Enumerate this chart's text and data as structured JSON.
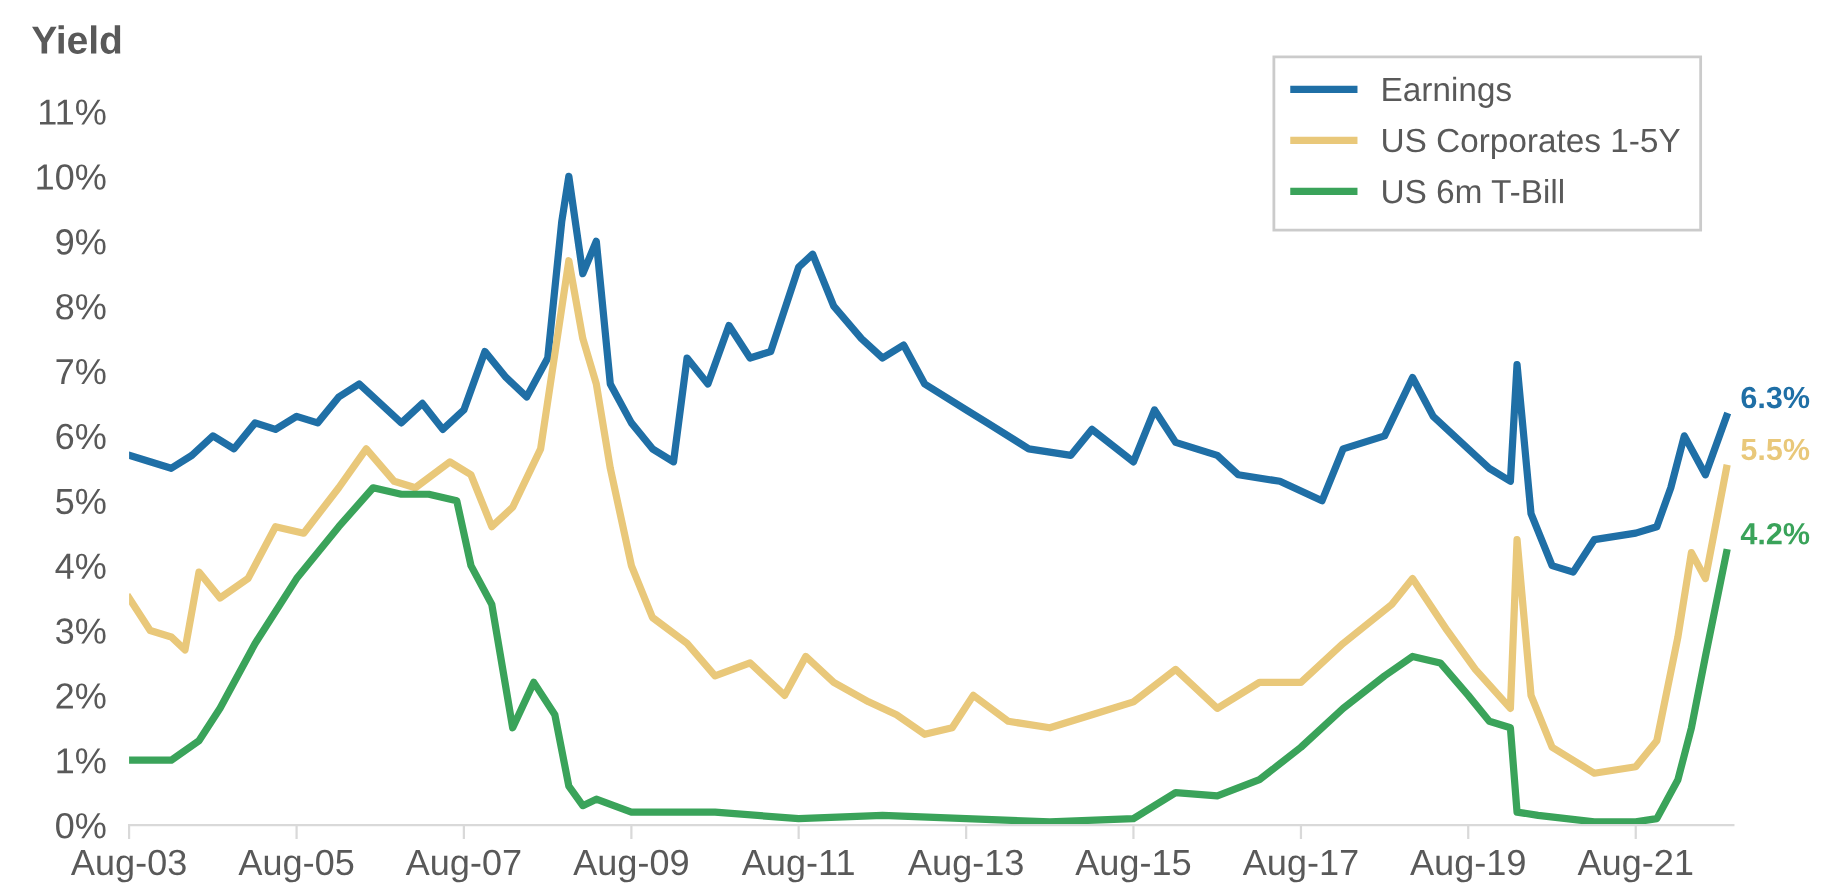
{
  "chart_data": {
    "type": "line",
    "ylabel": "Yield",
    "xlim": [
      "2003-08",
      "2022-10"
    ],
    "xticks": [
      {
        "value": "2003-08",
        "label": "Aug-03"
      },
      {
        "value": "2005-08",
        "label": "Aug-05"
      },
      {
        "value": "2007-08",
        "label": "Aug-07"
      },
      {
        "value": "2009-08",
        "label": "Aug-09"
      },
      {
        "value": "2011-08",
        "label": "Aug-11"
      },
      {
        "value": "2013-08",
        "label": "Aug-13"
      },
      {
        "value": "2015-08",
        "label": "Aug-15"
      },
      {
        "value": "2017-08",
        "label": "Aug-17"
      },
      {
        "value": "2019-08",
        "label": "Aug-19"
      },
      {
        "value": "2021-08",
        "label": "Aug-21"
      }
    ],
    "ylim": [
      0,
      11
    ],
    "yticks": [
      {
        "value": 0,
        "label": "0%"
      },
      {
        "value": 1,
        "label": "1%"
      },
      {
        "value": 2,
        "label": "2%"
      },
      {
        "value": 3,
        "label": "3%"
      },
      {
        "value": 4,
        "label": "4%"
      },
      {
        "value": 5,
        "label": "5%"
      },
      {
        "value": 6,
        "label": "6%"
      },
      {
        "value": 7,
        "label": "7%"
      },
      {
        "value": 8,
        "label": "8%"
      },
      {
        "value": 9,
        "label": "9%"
      },
      {
        "value": 10,
        "label": "10%"
      },
      {
        "value": 11,
        "label": "11%"
      }
    ],
    "grid": false,
    "legend": "top right",
    "marker": "none",
    "line_style": "solid",
    "series": [
      {
        "name": "Earnings",
        "color": "#1f6fa6",
        "x": [
          "2003-08",
          "2003-11",
          "2004-02",
          "2004-05",
          "2004-08",
          "2004-11",
          "2005-02",
          "2005-05",
          "2005-08",
          "2005-11",
          "2006-02",
          "2006-05",
          "2006-08",
          "2006-11",
          "2007-02",
          "2007-05",
          "2007-08",
          "2007-11",
          "2008-02",
          "2008-05",
          "2008-08",
          "2008-10",
          "2008-11",
          "2009-01",
          "2009-03",
          "2009-05",
          "2009-08",
          "2009-11",
          "2010-02",
          "2010-04",
          "2010-07",
          "2010-10",
          "2011-01",
          "2011-04",
          "2011-08",
          "2011-10",
          "2012-01",
          "2012-05",
          "2012-08",
          "2012-11",
          "2013-02",
          "2013-08",
          "2013-11",
          "2014-05",
          "2014-11",
          "2015-02",
          "2015-08",
          "2015-11",
          "2016-02",
          "2016-08",
          "2016-11",
          "2017-05",
          "2017-11",
          "2018-02",
          "2018-08",
          "2018-12",
          "2019-03",
          "2019-08",
          "2019-11",
          "2020-02",
          "2020-03",
          "2020-05",
          "2020-08",
          "2020-11",
          "2021-02",
          "2021-08",
          "2021-11",
          "2022-01",
          "2022-03",
          "2022-06",
          "2022-09"
        ],
        "values": [
          5.7,
          5.6,
          5.5,
          5.7,
          6.0,
          5.8,
          6.2,
          6.1,
          6.3,
          6.2,
          6.6,
          6.8,
          6.5,
          6.2,
          6.5,
          6.1,
          6.4,
          7.3,
          6.9,
          6.6,
          7.2,
          9.3,
          10.0,
          8.5,
          9.0,
          6.8,
          6.2,
          5.8,
          5.6,
          7.2,
          6.8,
          7.7,
          7.2,
          7.3,
          8.6,
          8.8,
          8.0,
          7.5,
          7.2,
          7.4,
          6.8,
          6.4,
          6.2,
          5.8,
          5.7,
          6.1,
          5.6,
          6.4,
          5.9,
          5.7,
          5.4,
          5.3,
          5.0,
          5.8,
          6.0,
          6.9,
          6.3,
          5.8,
          5.5,
          5.3,
          7.1,
          4.8,
          4.0,
          3.9,
          4.4,
          4.5,
          4.6,
          5.2,
          6.0,
          5.4,
          6.3
        ]
      },
      {
        "name": "US Corporates 1-5Y",
        "color": "#e9c87a",
        "x": [
          "2003-08",
          "2003-11",
          "2004-02",
          "2004-04",
          "2004-06",
          "2004-09",
          "2005-01",
          "2005-05",
          "2005-09",
          "2006-02",
          "2006-06",
          "2006-10",
          "2007-01",
          "2007-06",
          "2007-09",
          "2007-12",
          "2008-03",
          "2008-07",
          "2008-11",
          "2009-01",
          "2009-03",
          "2009-05",
          "2009-08",
          "2009-11",
          "2010-04",
          "2010-08",
          "2011-01",
          "2011-06",
          "2011-09",
          "2012-01",
          "2012-06",
          "2012-10",
          "2013-02",
          "2013-06",
          "2013-09",
          "2014-02",
          "2014-08",
          "2015-02",
          "2015-08",
          "2016-02",
          "2016-08",
          "2017-02",
          "2017-08",
          "2018-02",
          "2018-09",
          "2018-12",
          "2019-05",
          "2019-09",
          "2020-02",
          "2020-03",
          "2020-05",
          "2020-08",
          "2020-11",
          "2021-02",
          "2021-08",
          "2021-11",
          "2022-02",
          "2022-04",
          "2022-06",
          "2022-09"
        ],
        "values": [
          3.5,
          3.0,
          2.9,
          2.7,
          3.9,
          3.5,
          3.8,
          4.6,
          4.5,
          5.2,
          5.8,
          5.3,
          5.2,
          5.6,
          5.4,
          4.6,
          4.9,
          5.8,
          8.7,
          7.5,
          6.8,
          5.5,
          4.0,
          3.2,
          2.8,
          2.3,
          2.5,
          2.0,
          2.6,
          2.2,
          1.9,
          1.7,
          1.4,
          1.5,
          2.0,
          1.6,
          1.5,
          1.7,
          1.9,
          2.4,
          1.8,
          2.2,
          2.2,
          2.8,
          3.4,
          3.8,
          3.0,
          2.4,
          1.8,
          4.4,
          2.0,
          1.2,
          1.0,
          0.8,
          0.9,
          1.3,
          2.9,
          4.2,
          3.8,
          5.5
        ]
      },
      {
        "name": "US 6m T-Bill",
        "color": "#3aa35a",
        "x": [
          "2003-08",
          "2004-02",
          "2004-06",
          "2004-09",
          "2005-02",
          "2005-08",
          "2006-02",
          "2006-07",
          "2006-11",
          "2007-03",
          "2007-07",
          "2007-09",
          "2007-12",
          "2008-03",
          "2008-06",
          "2008-09",
          "2008-11",
          "2009-01",
          "2009-03",
          "2009-08",
          "2010-08",
          "2011-08",
          "2012-08",
          "2013-08",
          "2014-08",
          "2015-08",
          "2015-11",
          "2016-02",
          "2016-08",
          "2017-02",
          "2017-08",
          "2018-02",
          "2018-08",
          "2018-12",
          "2019-04",
          "2019-08",
          "2019-11",
          "2020-02",
          "2020-03",
          "2020-06",
          "2021-02",
          "2021-08",
          "2021-11",
          "2022-02",
          "2022-04",
          "2022-06",
          "2022-09"
        ],
        "values": [
          1.0,
          1.0,
          1.3,
          1.8,
          2.8,
          3.8,
          4.6,
          5.2,
          5.1,
          5.1,
          5.0,
          4.0,
          3.4,
          1.5,
          2.2,
          1.7,
          0.6,
          0.3,
          0.4,
          0.2,
          0.2,
          0.1,
          0.15,
          0.1,
          0.05,
          0.1,
          0.3,
          0.5,
          0.45,
          0.7,
          1.2,
          1.8,
          2.3,
          2.6,
          2.5,
          2.0,
          1.6,
          1.5,
          0.2,
          0.15,
          0.05,
          0.05,
          0.1,
          0.7,
          1.5,
          2.6,
          4.2
        ]
      }
    ],
    "annotations": [
      {
        "text": "6.3%",
        "x": "2022-09",
        "y": 6.3
      },
      {
        "text": "5.5%",
        "x": "2022-09",
        "y": 5.5
      },
      {
        "text": "4.2%",
        "x": "2022-09",
        "y": 4.2
      }
    ]
  }
}
